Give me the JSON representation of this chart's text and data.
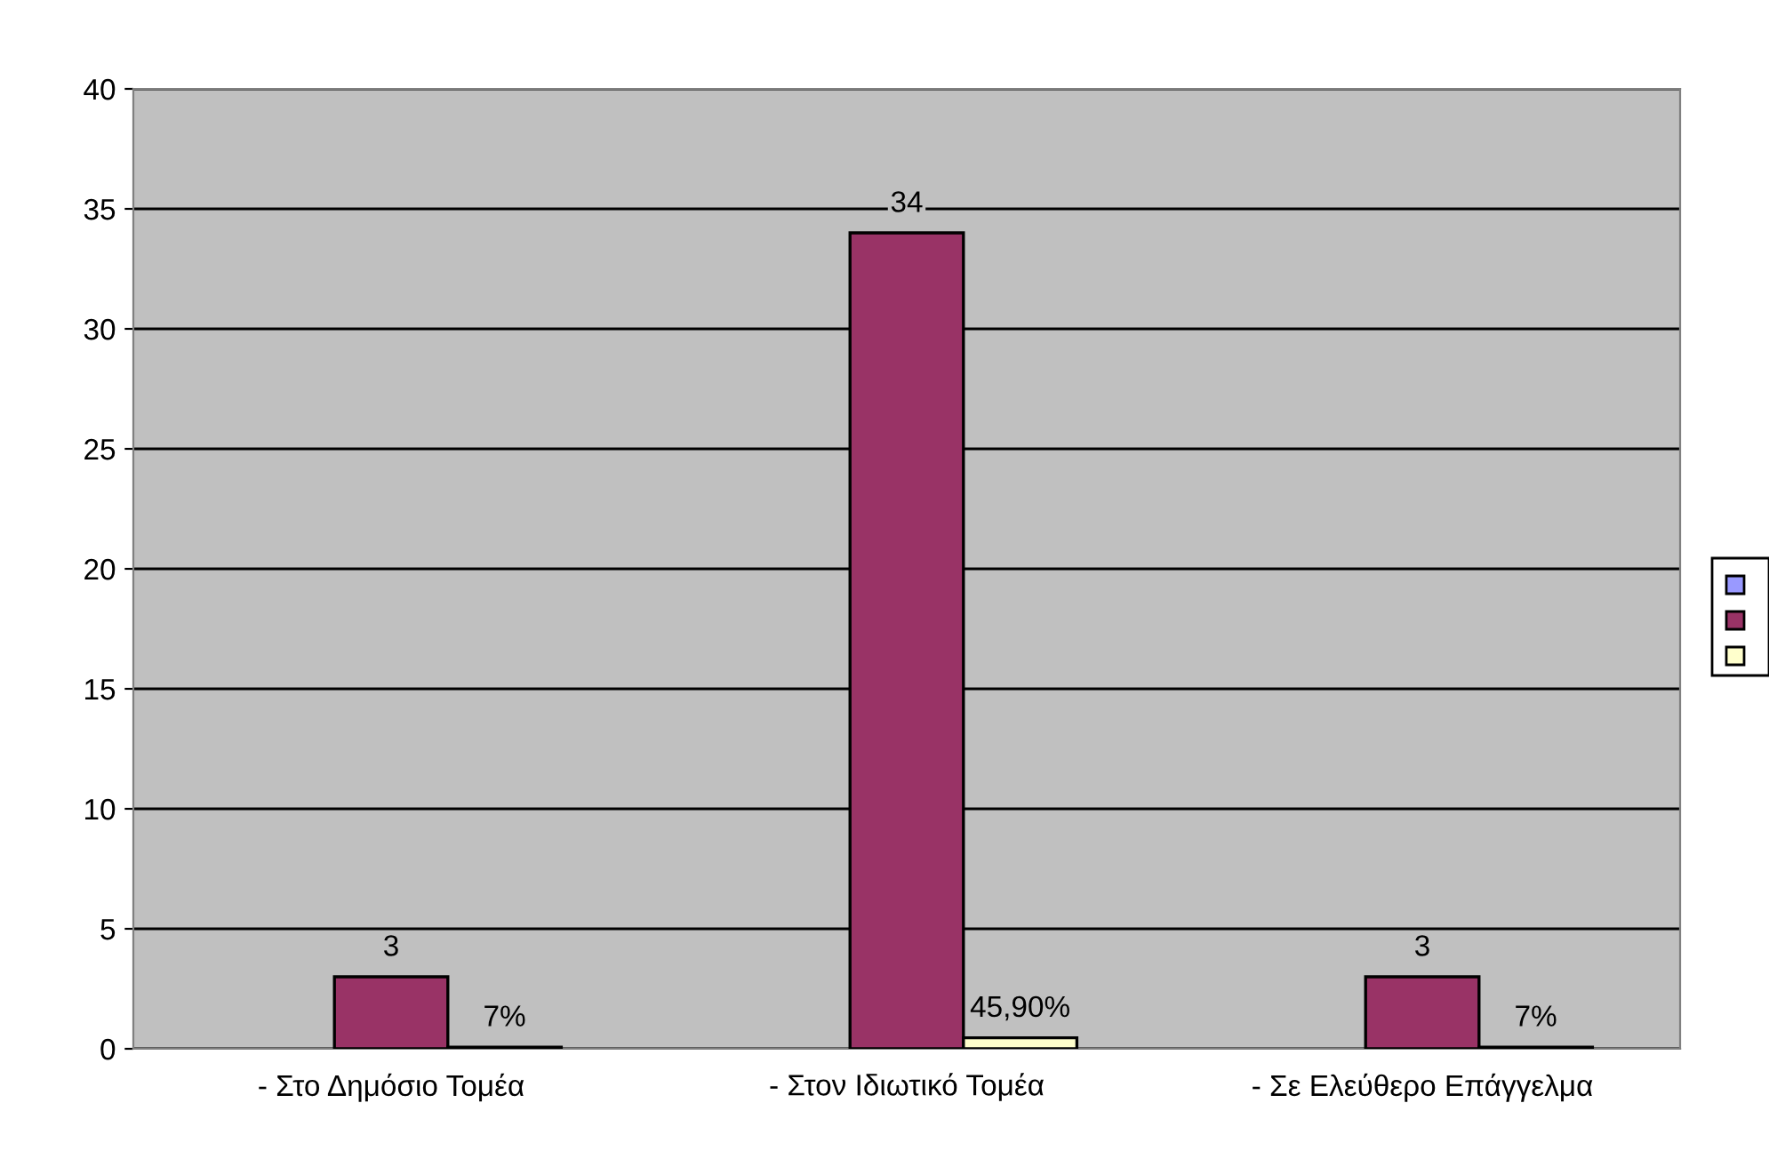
{
  "chart_data": {
    "type": "bar",
    "categories": [
      "- Στο Δημόσιο Τομέα",
      "- Στον Ιδιωτικό Τομέα",
      "- Σε Ελεύθερο Επάγγελμα"
    ],
    "series": [
      {
        "color": "#9999ff",
        "values": [
          null,
          null,
          null
        ]
      },
      {
        "color": "#993366",
        "values": [
          3,
          34,
          3
        ],
        "value_labels": [
          "3",
          "34",
          "3"
        ]
      },
      {
        "color": "#ffffcc",
        "values": [
          0.07,
          0.459,
          0.07
        ],
        "value_labels": [
          "7%",
          "45,90%",
          "7%"
        ]
      }
    ],
    "ylim": [
      0,
      40
    ],
    "yticks": [
      0,
      5,
      10,
      15,
      20,
      25,
      30,
      35,
      40
    ],
    "grid": "y"
  }
}
